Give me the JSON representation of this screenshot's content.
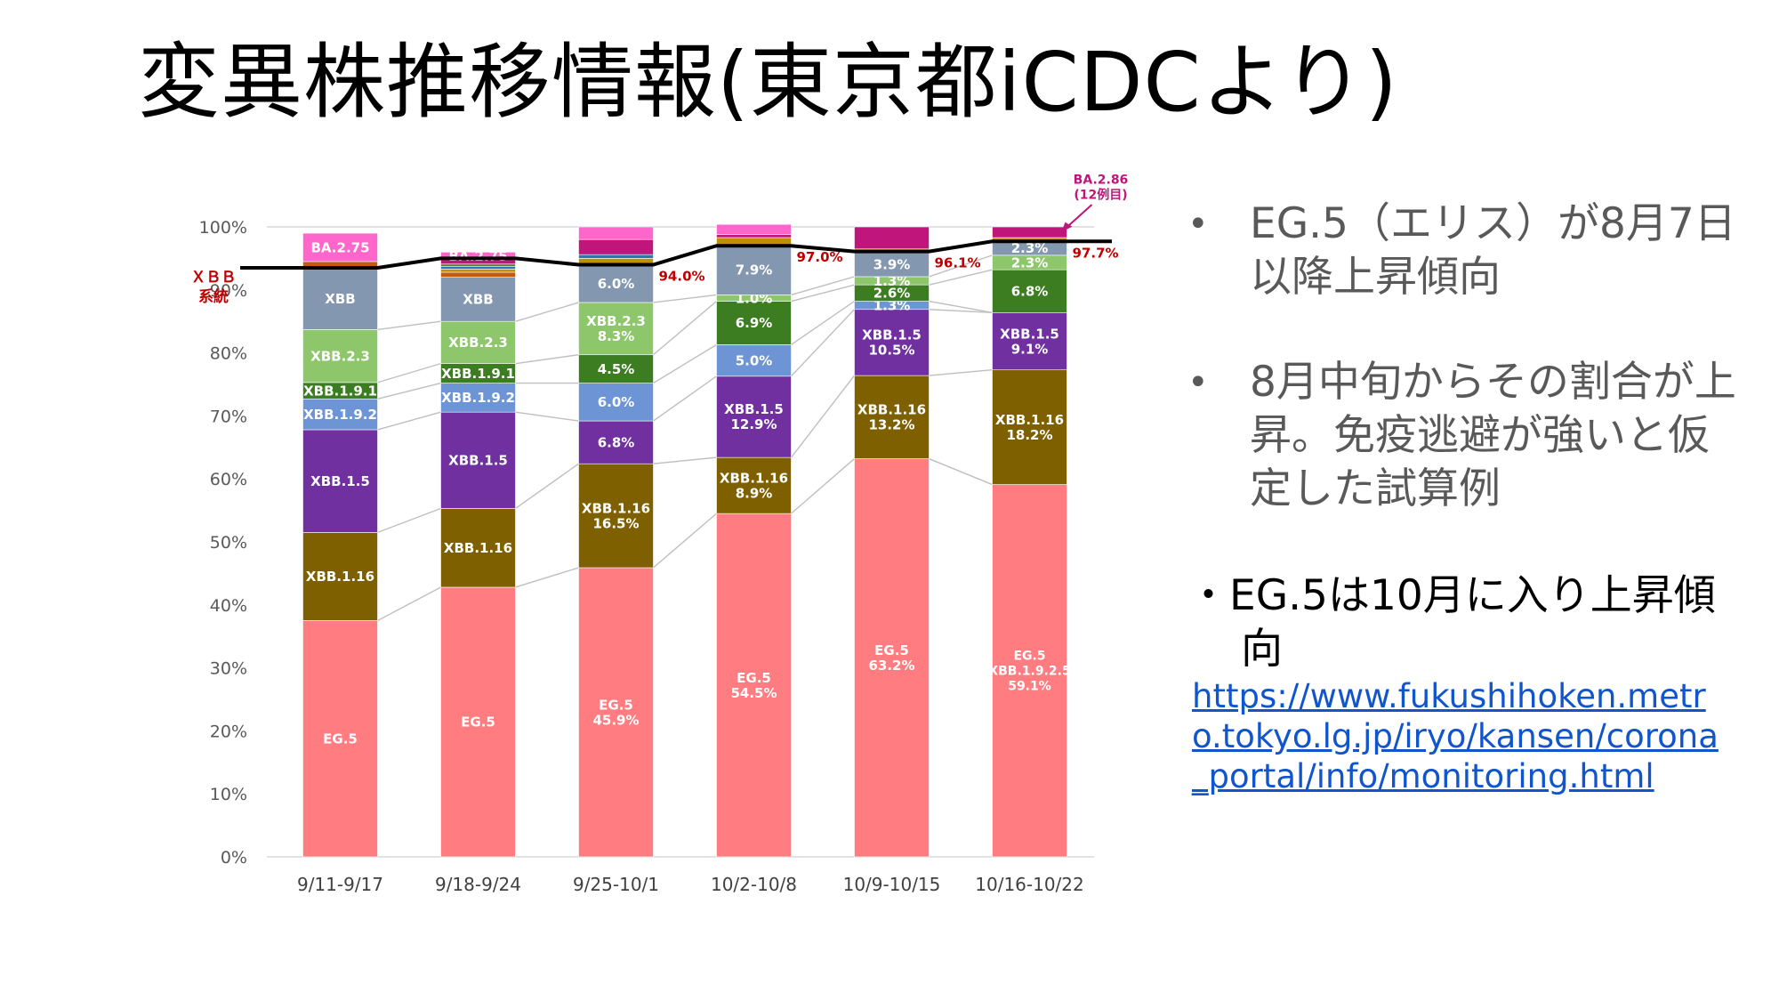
{
  "slide": {
    "title": "変異株推移情報(東京都iCDCより)",
    "bullets": [
      {
        "marker": "•",
        "text": "EG.5（エリス）が8月7日以降上昇傾向"
      },
      {
        "marker": "•",
        "text": "8月中旬からその割合が上昇。免疫逃避が強いと仮定した試算例"
      }
    ],
    "note": "・EG.5は10月に入り上昇傾向",
    "link": "https://www.fukushihoken.metro.tokyo.lg.jp/iryo/kansen/corona_portal/info/monitoring.html"
  },
  "chart_data": {
    "type": "bar",
    "stacked": true,
    "categories": [
      "9/11-9/17",
      "9/18-9/24",
      "9/25-10/1",
      "10/2-10/8",
      "10/9-10/15",
      "10/16-10/22"
    ],
    "yticks": [
      "0%",
      "10%",
      "20%",
      "30%",
      "40%",
      "50%",
      "60%",
      "70%",
      "80%",
      "90%",
      "100%"
    ],
    "ylim": [
      0,
      100
    ],
    "series": [
      {
        "name": "EG.5",
        "color": "#ff7c80",
        "values": [
          37.5,
          42.8,
          45.9,
          54.5,
          63.2,
          59.1
        ],
        "labels": [
          "EG.5",
          "EG.5",
          "EG.5\n45.9%",
          "EG.5\n54.5%",
          "EG.5\n63.2%",
          "EG.5\n(XBB.1.9.2.5)\n59.1%"
        ]
      },
      {
        "name": "XBB.1.16",
        "color": "#7f6000",
        "values": [
          14.0,
          12.5,
          16.5,
          8.9,
          13.2,
          18.2
        ],
        "labels": [
          "XBB.1.16",
          "XBB.1.16",
          "XBB.1.16\n16.5%",
          "XBB.1.16\n8.9%",
          "XBB.1.16\n13.2%",
          "XBB.1.16\n18.2%"
        ]
      },
      {
        "name": "XBB.1.5",
        "color": "#7030a0",
        "values": [
          16.3,
          15.3,
          6.8,
          12.9,
          10.5,
          9.1
        ],
        "labels": [
          "XBB.1.5",
          "XBB.1.5",
          "6.8%",
          "XBB.1.5\n12.9%",
          "XBB.1.5\n10.5%",
          "XBB.1.5\n9.1%"
        ]
      },
      {
        "name": "XBB.1.9.2",
        "color": "#6d95d6",
        "values": [
          4.9,
          4.6,
          6.0,
          5.0,
          1.3,
          0
        ],
        "labels": [
          "XBB.1.9.2",
          "XBB.1.9.2",
          "6.0%",
          "5.0%",
          "1.3%",
          ""
        ]
      },
      {
        "name": "XBB.1.9.1",
        "color": "#3c7d22",
        "values": [
          2.6,
          3.1,
          4.5,
          6.9,
          2.6,
          6.8
        ],
        "labels": [
          "XBB.1.9.1",
          "XBB.1.9.1",
          "4.5%",
          "6.9%",
          "2.6%",
          "6.8%"
        ]
      },
      {
        "name": "XBB.2.3",
        "color": "#8ec66b",
        "values": [
          8.4,
          6.7,
          8.3,
          1.0,
          1.3,
          2.3
        ],
        "labels": [
          "XBB.2.3",
          "XBB.2.3",
          "XBB.2.3\n8.3%",
          "1.0%",
          "1.3%",
          "2.3%"
        ]
      },
      {
        "name": "XBB",
        "color": "#8497b0",
        "values": [
          9.8,
          7.0,
          6.0,
          7.9,
          3.9,
          2.3
        ],
        "labels": [
          "XBB",
          "XBB",
          "6.0%",
          "7.9%",
          "3.9%",
          "2.3%"
        ]
      },
      {
        "name": "other-orange",
        "color": "#c55a11",
        "values": [
          1.0,
          0.8,
          0,
          0,
          0,
          0
        ],
        "labels": [
          "",
          "",
          "",
          "",
          "",
          ""
        ]
      },
      {
        "name": "other-gold",
        "color": "#bf9000",
        "values": [
          0,
          0.5,
          1.0,
          1.2,
          0.5,
          0.5
        ],
        "labels": [
          "",
          "",
          "",
          "",
          "",
          ""
        ]
      },
      {
        "name": "other-teal",
        "color": "#2e75b6",
        "values": [
          0,
          0.4,
          0.6,
          0,
          0,
          0
        ],
        "labels": [
          "",
          "",
          "",
          "",
          "",
          ""
        ]
      },
      {
        "name": "other-green",
        "color": "#548235",
        "values": [
          0,
          0.4,
          0,
          0,
          0,
          0
        ],
        "labels": [
          "",
          "",
          "",
          "",
          "",
          ""
        ]
      },
      {
        "name": "other-magenta",
        "color": "#c0157a",
        "values": [
          0,
          0.7,
          2.4,
          0.5,
          3.5,
          1.7
        ],
        "labels": [
          "",
          "",
          "",
          "",
          "",
          ""
        ]
      },
      {
        "name": "BA.2.75",
        "color": "#ff66cc",
        "values": [
          4.5,
          1.2,
          2.0,
          1.6,
          0,
          0
        ],
        "labels": [
          "BA.2.75",
          "BA.2.75",
          "",
          "",
          "",
          ""
        ]
      }
    ],
    "xbb_line": {
      "label": "ＸＢＢ\n系統",
      "values": [
        93.5,
        95.0,
        94.0,
        97.0,
        96.1,
        97.7
      ],
      "labels": [
        "",
        "",
        "94.0%",
        "97.0%",
        "96.1%",
        "97.7%"
      ]
    },
    "annotation": {
      "text": "BA.2.86\n(12例目)"
    }
  }
}
